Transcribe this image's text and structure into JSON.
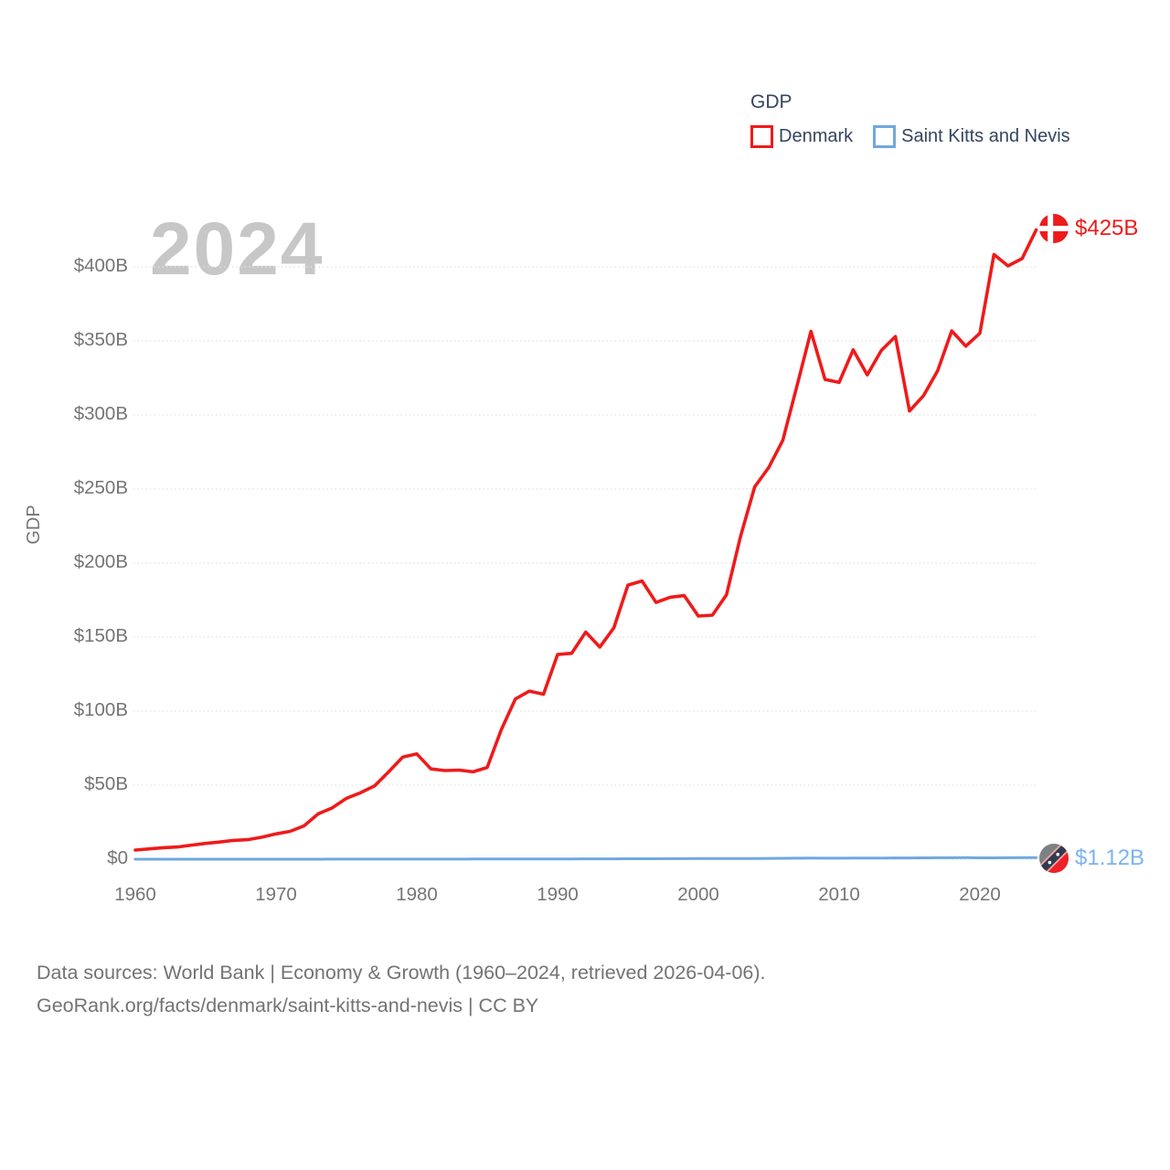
{
  "watermark": "2024",
  "legend": {
    "title": "GDP",
    "items": [
      {
        "label": "Denmark",
        "color": "#ee1b1b"
      },
      {
        "label": "Saint Kitts and Nevis",
        "color": "#6fa8e0"
      }
    ]
  },
  "y_axis": {
    "label": "GDP",
    "ticks": [
      {
        "label": "$0",
        "value": 0
      },
      {
        "label": "$50B",
        "value": 50
      },
      {
        "label": "$100B",
        "value": 100
      },
      {
        "label": "$150B",
        "value": 150
      },
      {
        "label": "$200B",
        "value": 200
      },
      {
        "label": "$250B",
        "value": 250
      },
      {
        "label": "$300B",
        "value": 300
      },
      {
        "label": "$350B",
        "value": 350
      },
      {
        "label": "$400B",
        "value": 400
      }
    ]
  },
  "x_axis": {
    "ticks": [
      {
        "label": "1960",
        "year": 1960
      },
      {
        "label": "1970",
        "year": 1970
      },
      {
        "label": "1980",
        "year": 1980
      },
      {
        "label": "1990",
        "year": 1990
      },
      {
        "label": "2000",
        "year": 2000
      },
      {
        "label": "2010",
        "year": 2010
      },
      {
        "label": "2020",
        "year": 2020
      }
    ]
  },
  "end_labels": [
    {
      "series": "Denmark",
      "text": "$425B",
      "color": "#ee1b1b"
    },
    {
      "series": "Saint Kitts and Nevis",
      "text": "$1.12B",
      "color": "#7db3ec"
    }
  ],
  "footer": {
    "line1": "Data sources: World Bank | Economy & Growth (1960–2024, retrieved 2026-04-06).",
    "line2": "GeoRank.org/facts/denmark/saint-kitts-and-nevis | CC BY"
  },
  "chart_data": {
    "type": "line",
    "title": "GDP",
    "ylabel": "GDP",
    "unit": "USD billions (current US$)",
    "x_range": [
      1960,
      2024
    ],
    "ylim": [
      0,
      440
    ],
    "grid": "horizontal-dotted",
    "legend_position": "top-right",
    "x": [
      1960,
      1961,
      1962,
      1963,
      1964,
      1965,
      1966,
      1967,
      1968,
      1969,
      1970,
      1971,
      1972,
      1973,
      1974,
      1975,
      1976,
      1977,
      1978,
      1979,
      1980,
      1981,
      1982,
      1983,
      1984,
      1985,
      1986,
      1987,
      1988,
      1989,
      1990,
      1991,
      1992,
      1993,
      1994,
      1995,
      1996,
      1997,
      1998,
      1999,
      2000,
      2001,
      2002,
      2003,
      2004,
      2005,
      2006,
      2007,
      2008,
      2009,
      2010,
      2011,
      2012,
      2013,
      2014,
      2015,
      2016,
      2017,
      2018,
      2019,
      2020,
      2021,
      2022,
      2023,
      2024
    ],
    "series": [
      {
        "name": "Denmark",
        "color": "#ee1b1b",
        "end_label": "$425B",
        "values": [
          6.2,
          7.0,
          7.8,
          8.3,
          9.5,
          10.7,
          11.6,
          12.7,
          13.2,
          14.9,
          17.1,
          18.8,
          22.6,
          30.7,
          34.7,
          41.1,
          44.9,
          49.5,
          59.0,
          69.0,
          71.1,
          61.0,
          59.9,
          60.2,
          59.0,
          62.0,
          87.4,
          108.2,
          113.5,
          111.4,
          138.2,
          139.1,
          153.4,
          143.3,
          156.3,
          185.1,
          187.9,
          173.4,
          176.9,
          178.0,
          164.2,
          164.8,
          178.6,
          218.1,
          251.4,
          264.5,
          282.9,
          319.4,
          356.5,
          324.0,
          322.0,
          344.0,
          327.1,
          343.6,
          353.0,
          302.7,
          313.1,
          329.9,
          356.8,
          346.5,
          355.2,
          408.4,
          400.7,
          405.6,
          425.0
        ]
      },
      {
        "name": "Saint Kitts and Nevis",
        "color": "#6fa8e0",
        "end_label": "$1.12B",
        "values": [
          0.012,
          0.013,
          0.014,
          0.014,
          0.015,
          0.016,
          0.017,
          0.017,
          0.018,
          0.02,
          0.022,
          0.024,
          0.027,
          0.03,
          0.036,
          0.043,
          0.044,
          0.048,
          0.057,
          0.064,
          0.068,
          0.075,
          0.083,
          0.088,
          0.098,
          0.109,
          0.123,
          0.14,
          0.163,
          0.182,
          0.199,
          0.21,
          0.229,
          0.244,
          0.266,
          0.289,
          0.312,
          0.339,
          0.353,
          0.375,
          0.416,
          0.442,
          0.468,
          0.48,
          0.512,
          0.558,
          0.63,
          0.672,
          0.721,
          0.69,
          0.7,
          0.725,
          0.733,
          0.766,
          0.84,
          0.885,
          0.935,
          0.963,
          1.011,
          1.053,
          0.927,
          0.954,
          1.005,
          1.077,
          1.12
        ]
      }
    ]
  }
}
